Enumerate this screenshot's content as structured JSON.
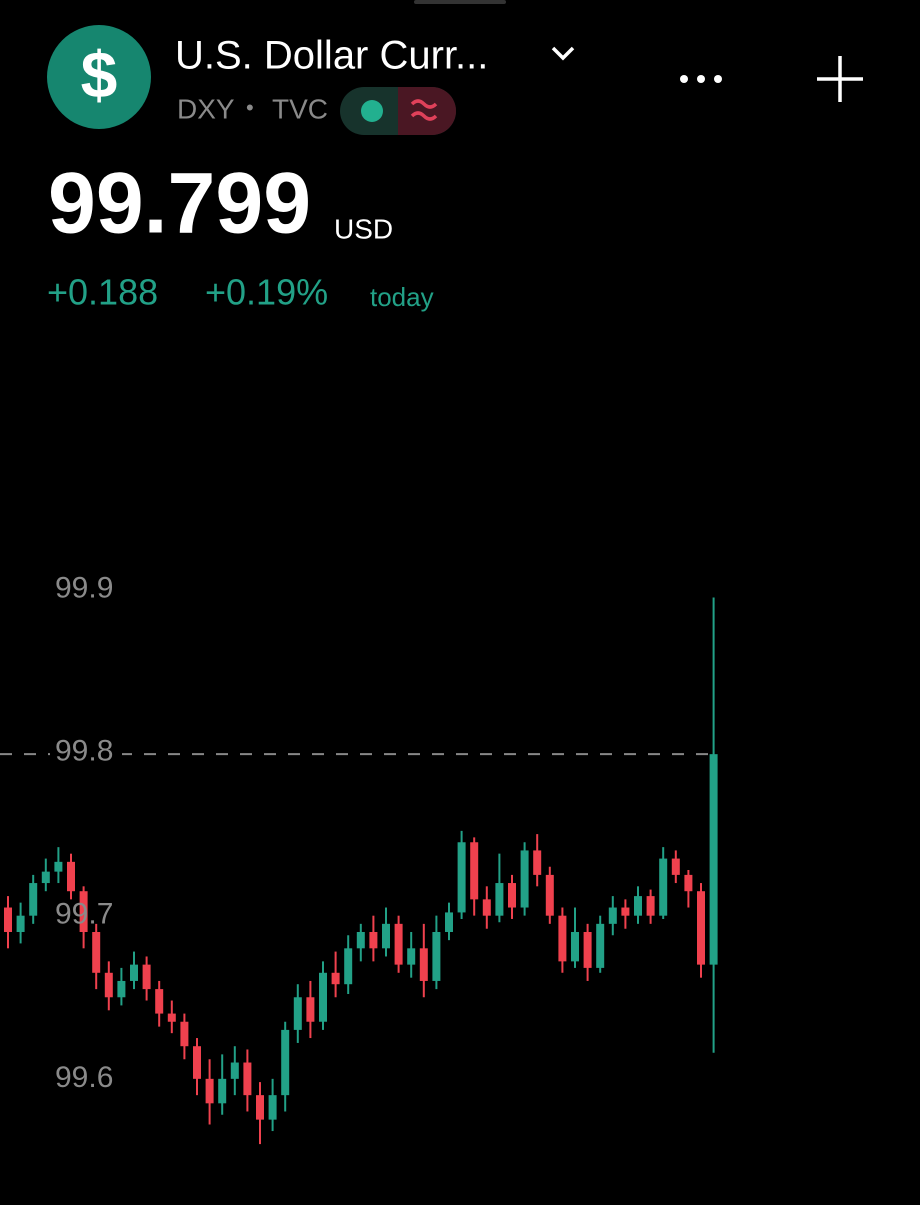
{
  "header": {
    "logo": "$",
    "name": "U.S. Dollar Curr...",
    "symbol": "DXY",
    "separator": "•",
    "exchange": "TVC",
    "price": "99.799",
    "currency": "USD",
    "change": "+0.188",
    "change_percent": "+0.19%",
    "period": "today"
  },
  "chart_data": {
    "type": "candlestick",
    "up_color": "#22a187",
    "down_color": "#f0414e",
    "ylim": [
      99.538,
      99.918
    ],
    "yticks": [
      99.6,
      99.7,
      99.8,
      99.9
    ],
    "price_line": true,
    "open": [
      99.705,
      99.69,
      99.7,
      99.72,
      99.727,
      99.733,
      99.715,
      99.69,
      99.665,
      99.65,
      99.66,
      99.67,
      99.655,
      99.64,
      99.635,
      99.62,
      99.6,
      99.585,
      99.6,
      99.61,
      99.59,
      99.575,
      99.59,
      99.63,
      99.65,
      99.635,
      99.665,
      99.658,
      99.68,
      99.69,
      99.68,
      99.695,
      99.67,
      99.68,
      99.66,
      99.69,
      99.702,
      99.745,
      99.71,
      99.7,
      99.72,
      99.705,
      99.74,
      99.725,
      99.7,
      99.672,
      99.69,
      99.668,
      99.695,
      99.705,
      99.7,
      99.712,
      99.7,
      99.735,
      99.725,
      99.715,
      99.67
    ],
    "high": [
      99.712,
      99.708,
      99.725,
      99.735,
      99.742,
      99.738,
      99.718,
      99.695,
      99.672,
      99.668,
      99.678,
      99.675,
      99.66,
      99.648,
      99.64,
      99.625,
      99.612,
      99.615,
      99.62,
      99.618,
      99.598,
      99.6,
      99.635,
      99.658,
      99.66,
      99.672,
      99.678,
      99.688,
      99.695,
      99.7,
      99.705,
      99.7,
      99.69,
      99.695,
      99.7,
      99.708,
      99.752,
      99.748,
      99.718,
      99.738,
      99.725,
      99.745,
      99.75,
      99.73,
      99.705,
      99.705,
      99.695,
      99.7,
      99.712,
      99.71,
      99.718,
      99.716,
      99.742,
      99.74,
      99.728,
      99.72,
      99.895
    ],
    "low": [
      99.68,
      99.683,
      99.695,
      99.715,
      99.72,
      99.71,
      99.68,
      99.655,
      99.642,
      99.645,
      99.655,
      99.648,
      99.632,
      99.628,
      99.612,
      99.59,
      99.572,
      99.578,
      99.59,
      99.58,
      99.56,
      99.568,
      99.58,
      99.622,
      99.625,
      99.63,
      99.65,
      99.652,
      99.672,
      99.672,
      99.675,
      99.665,
      99.662,
      99.65,
      99.655,
      99.685,
      99.698,
      99.7,
      99.692,
      99.696,
      99.698,
      99.7,
      99.718,
      99.695,
      99.665,
      99.668,
      99.66,
      99.665,
      99.688,
      99.692,
      99.695,
      99.695,
      99.698,
      99.72,
      99.705,
      99.662,
      99.616
    ],
    "close": [
      99.69,
      99.7,
      99.72,
      99.727,
      99.733,
      99.715,
      99.69,
      99.665,
      99.65,
      99.66,
      99.67,
      99.655,
      99.64,
      99.635,
      99.62,
      99.6,
      99.585,
      99.6,
      99.61,
      99.59,
      99.575,
      99.59,
      99.63,
      99.65,
      99.635,
      99.665,
      99.658,
      99.68,
      99.69,
      99.68,
      99.695,
      99.67,
      99.68,
      99.66,
      99.69,
      99.702,
      99.745,
      99.71,
      99.7,
      99.72,
      99.705,
      99.74,
      99.725,
      99.7,
      99.672,
      99.69,
      99.668,
      99.695,
      99.705,
      99.7,
      99.712,
      99.7,
      99.735,
      99.725,
      99.715,
      99.67,
      99.799
    ]
  }
}
